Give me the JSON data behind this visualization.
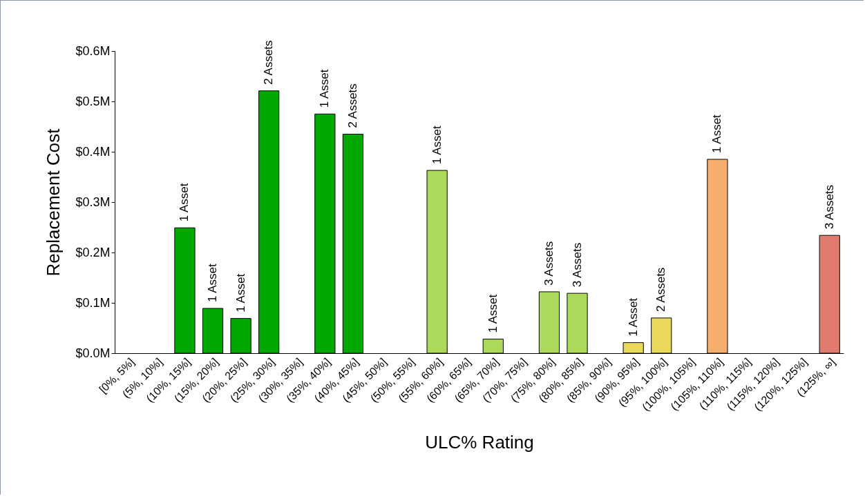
{
  "chart_data": {
    "type": "bar",
    "xlabel": "ULC% Rating",
    "ylabel": "Replacement Cost",
    "categories": [
      "[0%, 5%]",
      "(5%, 10%]",
      "(10%, 15%]",
      "(15%, 20%]",
      "(20%, 25%]",
      "(25%, 30%]",
      "(30%, 35%]",
      "(35%, 40%]",
      "(40%, 45%]",
      "(45%, 50%]",
      "(50%, 55%]",
      "(55%, 60%]",
      "(60%, 65%]",
      "(65%, 70%]",
      "(70%, 75%]",
      "(75%, 80%]",
      "(80%, 85%]",
      "(85%, 90%]",
      "(90%, 95%]",
      "(95%, 100%]",
      "(100%, 105%]",
      "(105%, 110%]",
      "(110%, 115%]",
      "(115%, 120%]",
      "(120%, 125%]",
      "(125%, ∞]"
    ],
    "values": [
      null,
      null,
      0.249,
      0.089,
      0.069,
      0.521,
      null,
      0.475,
      0.435,
      null,
      null,
      0.363,
      null,
      0.028,
      null,
      0.122,
      0.119,
      null,
      0.021,
      0.07,
      null,
      0.385,
      null,
      null,
      null,
      0.234
    ],
    "colors": [
      "#00a800",
      "#00a800",
      "#00a800",
      "#00a800",
      "#00a800",
      "#00a800",
      "#00a800",
      "#00a800",
      "#00a800",
      "#00a800",
      "#00a800",
      "#acd95a",
      "#acd95a",
      "#acd95a",
      "#acd95a",
      "#acd95a",
      "#acd95a",
      "#acd95a",
      "#ead85c",
      "#ead85c",
      "#f5ae6b",
      "#f5ae6b",
      "#f5ae6b",
      "#e07b6e",
      "#e07b6e",
      "#e07b6e"
    ],
    "annotations": [
      {
        "text": "1 Asset",
        "x": "(10%, 15%]",
        "y": 0.249
      },
      {
        "text": "1 Asset",
        "x": "(15%, 20%]",
        "y": 0.089
      },
      {
        "text": "1 Asset",
        "x": "(20%, 25%]",
        "y": 0.069
      },
      {
        "text": "2 Assets",
        "x": "(25%, 30%]",
        "y": 0.521
      },
      {
        "text": "1 Asset",
        "x": "(35%, 40%]",
        "y": 0.475
      },
      {
        "text": "2 Assets",
        "x": "(40%, 45%]",
        "y": 0.435
      },
      {
        "text": "1 Asset",
        "x": "(55%, 60%]",
        "y": 0.363
      },
      {
        "text": "1 Asset",
        "x": "(65%, 70%]",
        "y": 0.028
      },
      {
        "text": "3 Assets",
        "x": "(75%, 80%]",
        "y": 0.122
      },
      {
        "text": "3 Assets",
        "x": "(80%, 85%]",
        "y": 0.119
      },
      {
        "text": "1 Asset",
        "x": "(90%, 95%]",
        "y": 0.021
      },
      {
        "text": "2 Assets",
        "x": "(95%, 100%]",
        "y": 0.07
      },
      {
        "text": "1 Asset",
        "x": "(105%, 110%]",
        "y": 0.385
      },
      {
        "text": "3 Assets",
        "x": "(125%, ∞]",
        "y": 0.234
      }
    ],
    "ylim": [
      0,
      0.6
    ],
    "yticks": [
      {
        "value": 0,
        "label": "$0.0M"
      },
      {
        "value": 0.1,
        "label": "$0.1M"
      },
      {
        "value": 0.2,
        "label": "$0.2M"
      },
      {
        "value": 0.3,
        "label": "$0.3M"
      },
      {
        "value": 0.4,
        "label": "$0.4M"
      },
      {
        "value": 0.5,
        "label": "$0.5M"
      },
      {
        "value": 0.6,
        "label": "$0.6M"
      }
    ],
    "grid": false,
    "legend": false
  }
}
